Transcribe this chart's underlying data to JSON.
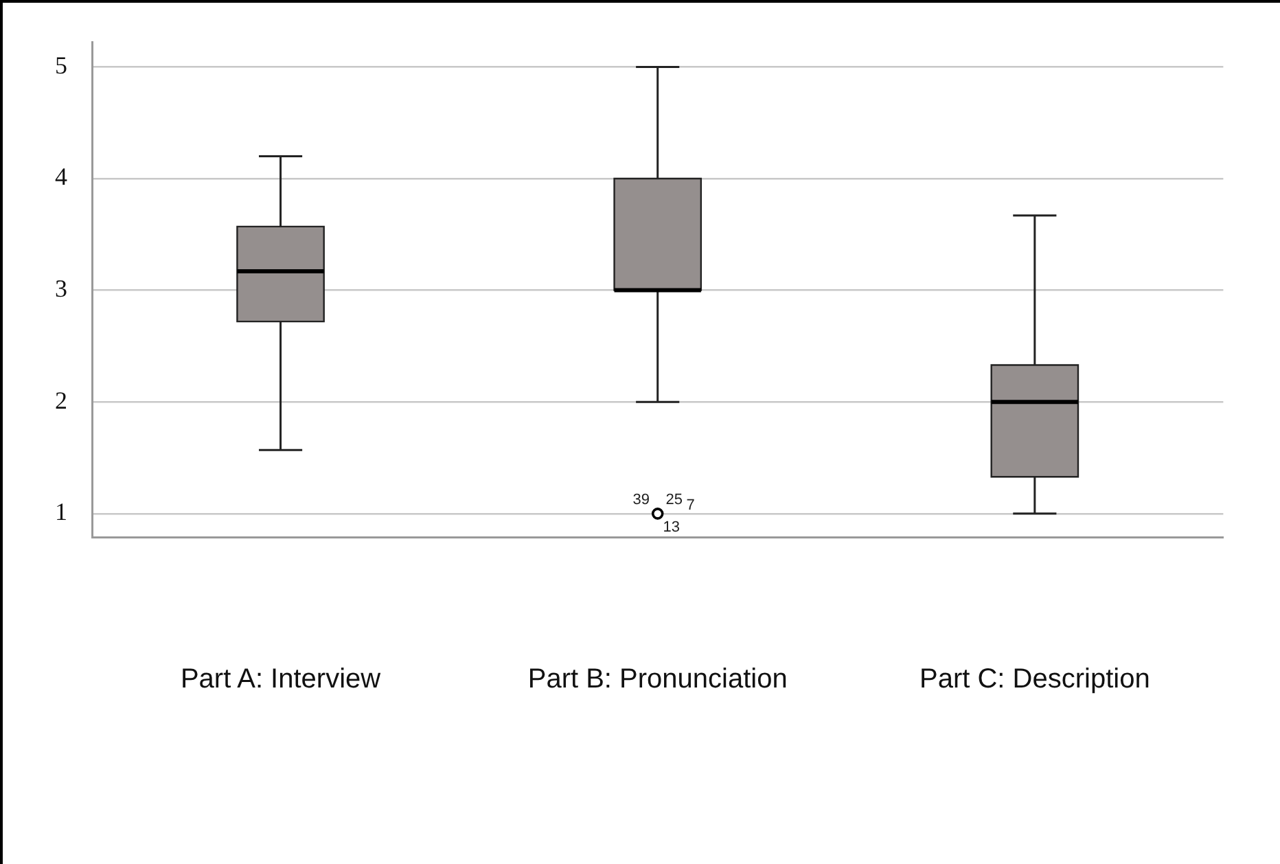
{
  "chart_data": {
    "type": "box",
    "categories": [
      "Part A: Interview",
      "Part B: Pronunciation",
      "Part C: Description"
    ],
    "series": [
      {
        "color": "#958f8e",
        "boxes": [
          {
            "low": 1.57,
            "q1": 2.72,
            "median": 3.17,
            "q3": 3.57,
            "high": 4.2
          },
          {
            "low": 2,
            "q1": 3,
            "median": 3,
            "q3": 4,
            "high": 5,
            "outliers": [
              1
            ]
          },
          {
            "low": 1,
            "q1": 1.33,
            "median": 2,
            "q3": 2.33,
            "high": 3.67
          }
        ]
      }
    ],
    "ylim": [
      0.79,
      5.22
    ],
    "yticks": [
      1,
      2,
      3,
      4,
      5
    ],
    "grid": "y",
    "legend": false,
    "annotations": [
      "39",
      "25",
      "7",
      "13"
    ]
  }
}
